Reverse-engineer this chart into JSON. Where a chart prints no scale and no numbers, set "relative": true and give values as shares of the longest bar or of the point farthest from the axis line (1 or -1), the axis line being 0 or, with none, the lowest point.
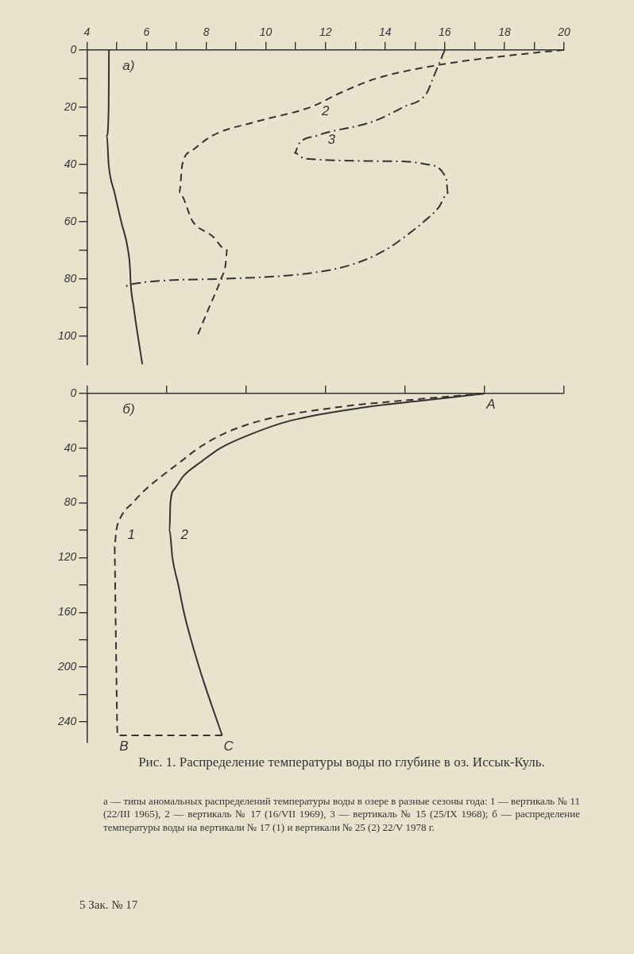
{
  "chart_data": [
    {
      "type": "line",
      "xlim": [
        4,
        20
      ],
      "ylim": [
        110,
        0
      ],
      "xticks": [
        4,
        {
          "value": 5,
          "label": null
        },
        6,
        {
          "value": 7,
          "label": null
        },
        8,
        {
          "value": 9,
          "label": null
        },
        10,
        {
          "value": 11,
          "label": null
        },
        12,
        {
          "value": 13,
          "label": null
        },
        14,
        {
          "value": 15,
          "label": null
        },
        16,
        {
          "value": 17,
          "label": null
        },
        18,
        {
          "value": 19,
          "label": null
        },
        20
      ],
      "yticks": [
        0,
        {
          "value": 10,
          "label": null
        },
        20,
        {
          "value": 30,
          "label": null
        },
        40,
        {
          "value": 50,
          "label": null
        },
        60,
        {
          "value": 70,
          "label": null
        },
        80,
        {
          "value": 90,
          "label": null
        },
        100
      ],
      "legend": false,
      "marker": "none",
      "series": [
        {
          "color": "#333333",
          "line_style": "solid",
          "x": [
            4.74,
            4.73,
            4.67,
            4.73,
            4.93,
            5.15,
            5.38,
            5.45,
            5.46,
            5.57,
            5.71,
            5.86
          ],
          "values": [
            0,
            20,
            30,
            40,
            50,
            60,
            70,
            77,
            80,
            90,
            100,
            110
          ]
        },
        {
          "name": "2",
          "color": "#333333",
          "line_style": "dashed",
          "x": [
            20,
            19.0,
            15.95,
            13.7,
            12.5,
            11.5,
            9.7,
            8.2,
            7.55,
            7.2,
            7.1,
            7.55,
            8.2,
            8.7,
            8.65,
            8.5,
            8.1,
            7.7
          ],
          "values": [
            0,
            1,
            5,
            10,
            15,
            20,
            25,
            30,
            35,
            40,
            50,
            60,
            65,
            70,
            75,
            80,
            90,
            100
          ]
        },
        {
          "name": "3",
          "color": "#333333",
          "line_style": "dashdot",
          "x": [
            16.0,
            15.8,
            15.6,
            15.4,
            14.6,
            13.6,
            11.7,
            11.1,
            10.97,
            11.3,
            14.7,
            15.4,
            16.05,
            16.1,
            15.8,
            15.3,
            14.7,
            14.0,
            12.9,
            11.5,
            8.55,
            5.43,
            5.26
          ],
          "values": [
            0,
            5,
            10,
            15,
            20,
            25,
            30,
            33,
            36,
            38,
            39,
            40,
            45,
            50,
            55,
            60,
            65,
            70,
            75,
            78,
            80,
            82,
            83
          ]
        }
      ],
      "annotations": [
        "а)"
      ]
    },
    {
      "type": "line",
      "orientation": "horizontal",
      "relative": true,
      "ylim": [
        255,
        0
      ],
      "yticks": [
        0,
        {
          "value": 20,
          "label": null
        },
        40,
        {
          "value": 60,
          "label": null
        },
        80,
        {
          "value": 100,
          "label": null
        },
        120,
        {
          "value": 140,
          "label": null
        },
        160,
        {
          "value": 180,
          "label": null
        },
        200,
        {
          "value": 220,
          "label": null
        },
        240
      ],
      "legend": false,
      "marker": "none",
      "title": "Рис. 1. Распределение температуры воды по глубине в оз. Иссык-Куль.",
      "series": [
        {
          "name": "1",
          "color": "#333333",
          "line_style": "dashed",
          "x": [
            0,
            5,
            10,
            20,
            30,
            40,
            50,
            60,
            70,
            80,
            90,
            100,
            110,
            120,
            160,
            200,
            250,
            250
          ],
          "values": [
            1.0,
            0.8,
            0.63,
            0.435,
            0.34,
            0.28,
            0.235,
            0.19,
            0.148,
            0.115,
            0.086,
            0.074,
            0.07,
            0.07,
            0.072,
            0.074,
            0.077,
            0.34
          ]
        },
        {
          "name": "2",
          "color": "#333333",
          "line_style": "solid",
          "x": [
            0,
            5,
            10,
            20,
            30,
            40,
            50,
            60,
            70,
            80,
            100,
            120,
            140,
            160,
            200,
            250
          ],
          "values": [
            1.0,
            0.85,
            0.7,
            0.51,
            0.41,
            0.335,
            0.287,
            0.244,
            0.22,
            0.21,
            0.208,
            0.215,
            0.23,
            0.244,
            0.282,
            0.34
          ]
        }
      ],
      "annotations": [
        "б)",
        {
          "text": "A",
          "x": 1.0,
          "y": 0
        },
        {
          "text": "B",
          "x": 0.077,
          "y": 250
        },
        {
          "text": "C",
          "x": 0.34,
          "y": 250
        },
        "а — типы аномальных распределений температуры воды в озере в разные сезоны года: 1 — вертикаль № 11 (22/III 1965), 2 — вертикаль № 17 (16/VII 1969), 3 — вертикаль № 15 (25/IX 1968); б — распределение температуры воды на вертикали № 17 (1) и вертикали № 25 (2) 22/V 1978 г.",
        "5  Зак. № 17"
      ]
    }
  ]
}
